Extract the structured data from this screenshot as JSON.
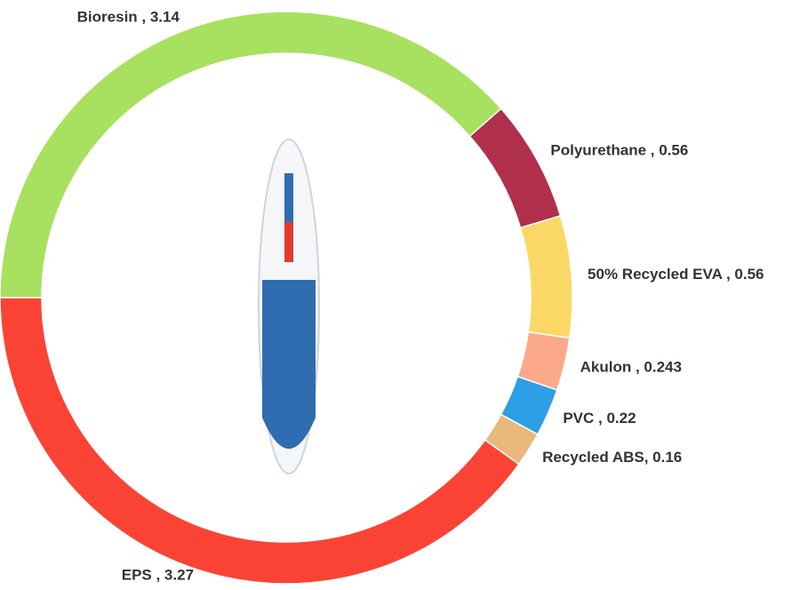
{
  "chart_data": {
    "type": "donut",
    "categories": [
      "Bioresin , 3.14",
      "Polyurethane , 0.56",
      "50% Recycled EVA , 0.56",
      "Akulon , 0.243",
      "PVC , 0.22",
      "Recycled ABS, 0.16",
      "EPS , 3.27"
    ],
    "values": [
      3.14,
      0.56,
      0.56,
      0.243,
      0.22,
      0.16,
      3.27
    ],
    "colors": [
      "#a8e05f",
      "#b0304c",
      "#fbd865",
      "#fba98a",
      "#2c9fe5",
      "#e8b97a",
      "#fa4334"
    ]
  }
}
